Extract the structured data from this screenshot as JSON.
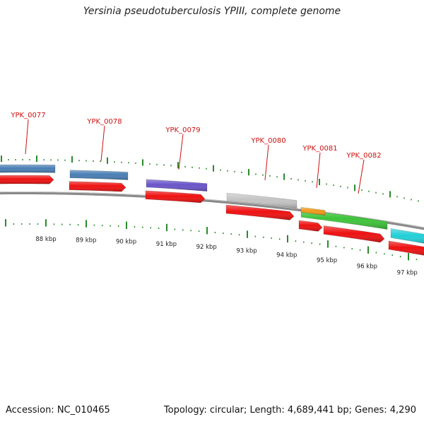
{
  "title": "Yersinia pseudotuberculosis YPIII, complete genome",
  "accession": "Accession: NC_010465",
  "summary": "Topology: circular; Length: 4,689,441 bp; Genes: 4,290",
  "genes": [
    {
      "label": "YPK_0077",
      "color": "#4a7fb5"
    },
    {
      "label": "YPK_0078",
      "color": "#4a7fb5"
    },
    {
      "label": "YPK_0079",
      "color": "#6a55c8"
    },
    {
      "label": "YPK_0080",
      "color": "#c4c4c4"
    },
    {
      "label": "YPK_0081",
      "color": "#3ec43a"
    },
    {
      "label": "YPK_0082",
      "color": "#3ec43a"
    }
  ],
  "kbp_ticks": [
    "88 kbp",
    "89 kbp",
    "90 kbp",
    "91 kbp",
    "92 kbp",
    "93 kbp",
    "94 kbp",
    "95 kbp",
    "96 kbp",
    "97 kbp"
  ],
  "colors": {
    "cds": "#ee1111",
    "backbone": "#888888",
    "label": "#cc1111",
    "tick": "#2a8a2a",
    "orange_feature": "#f09a1a",
    "cyan_feature": "#22d0d8"
  }
}
